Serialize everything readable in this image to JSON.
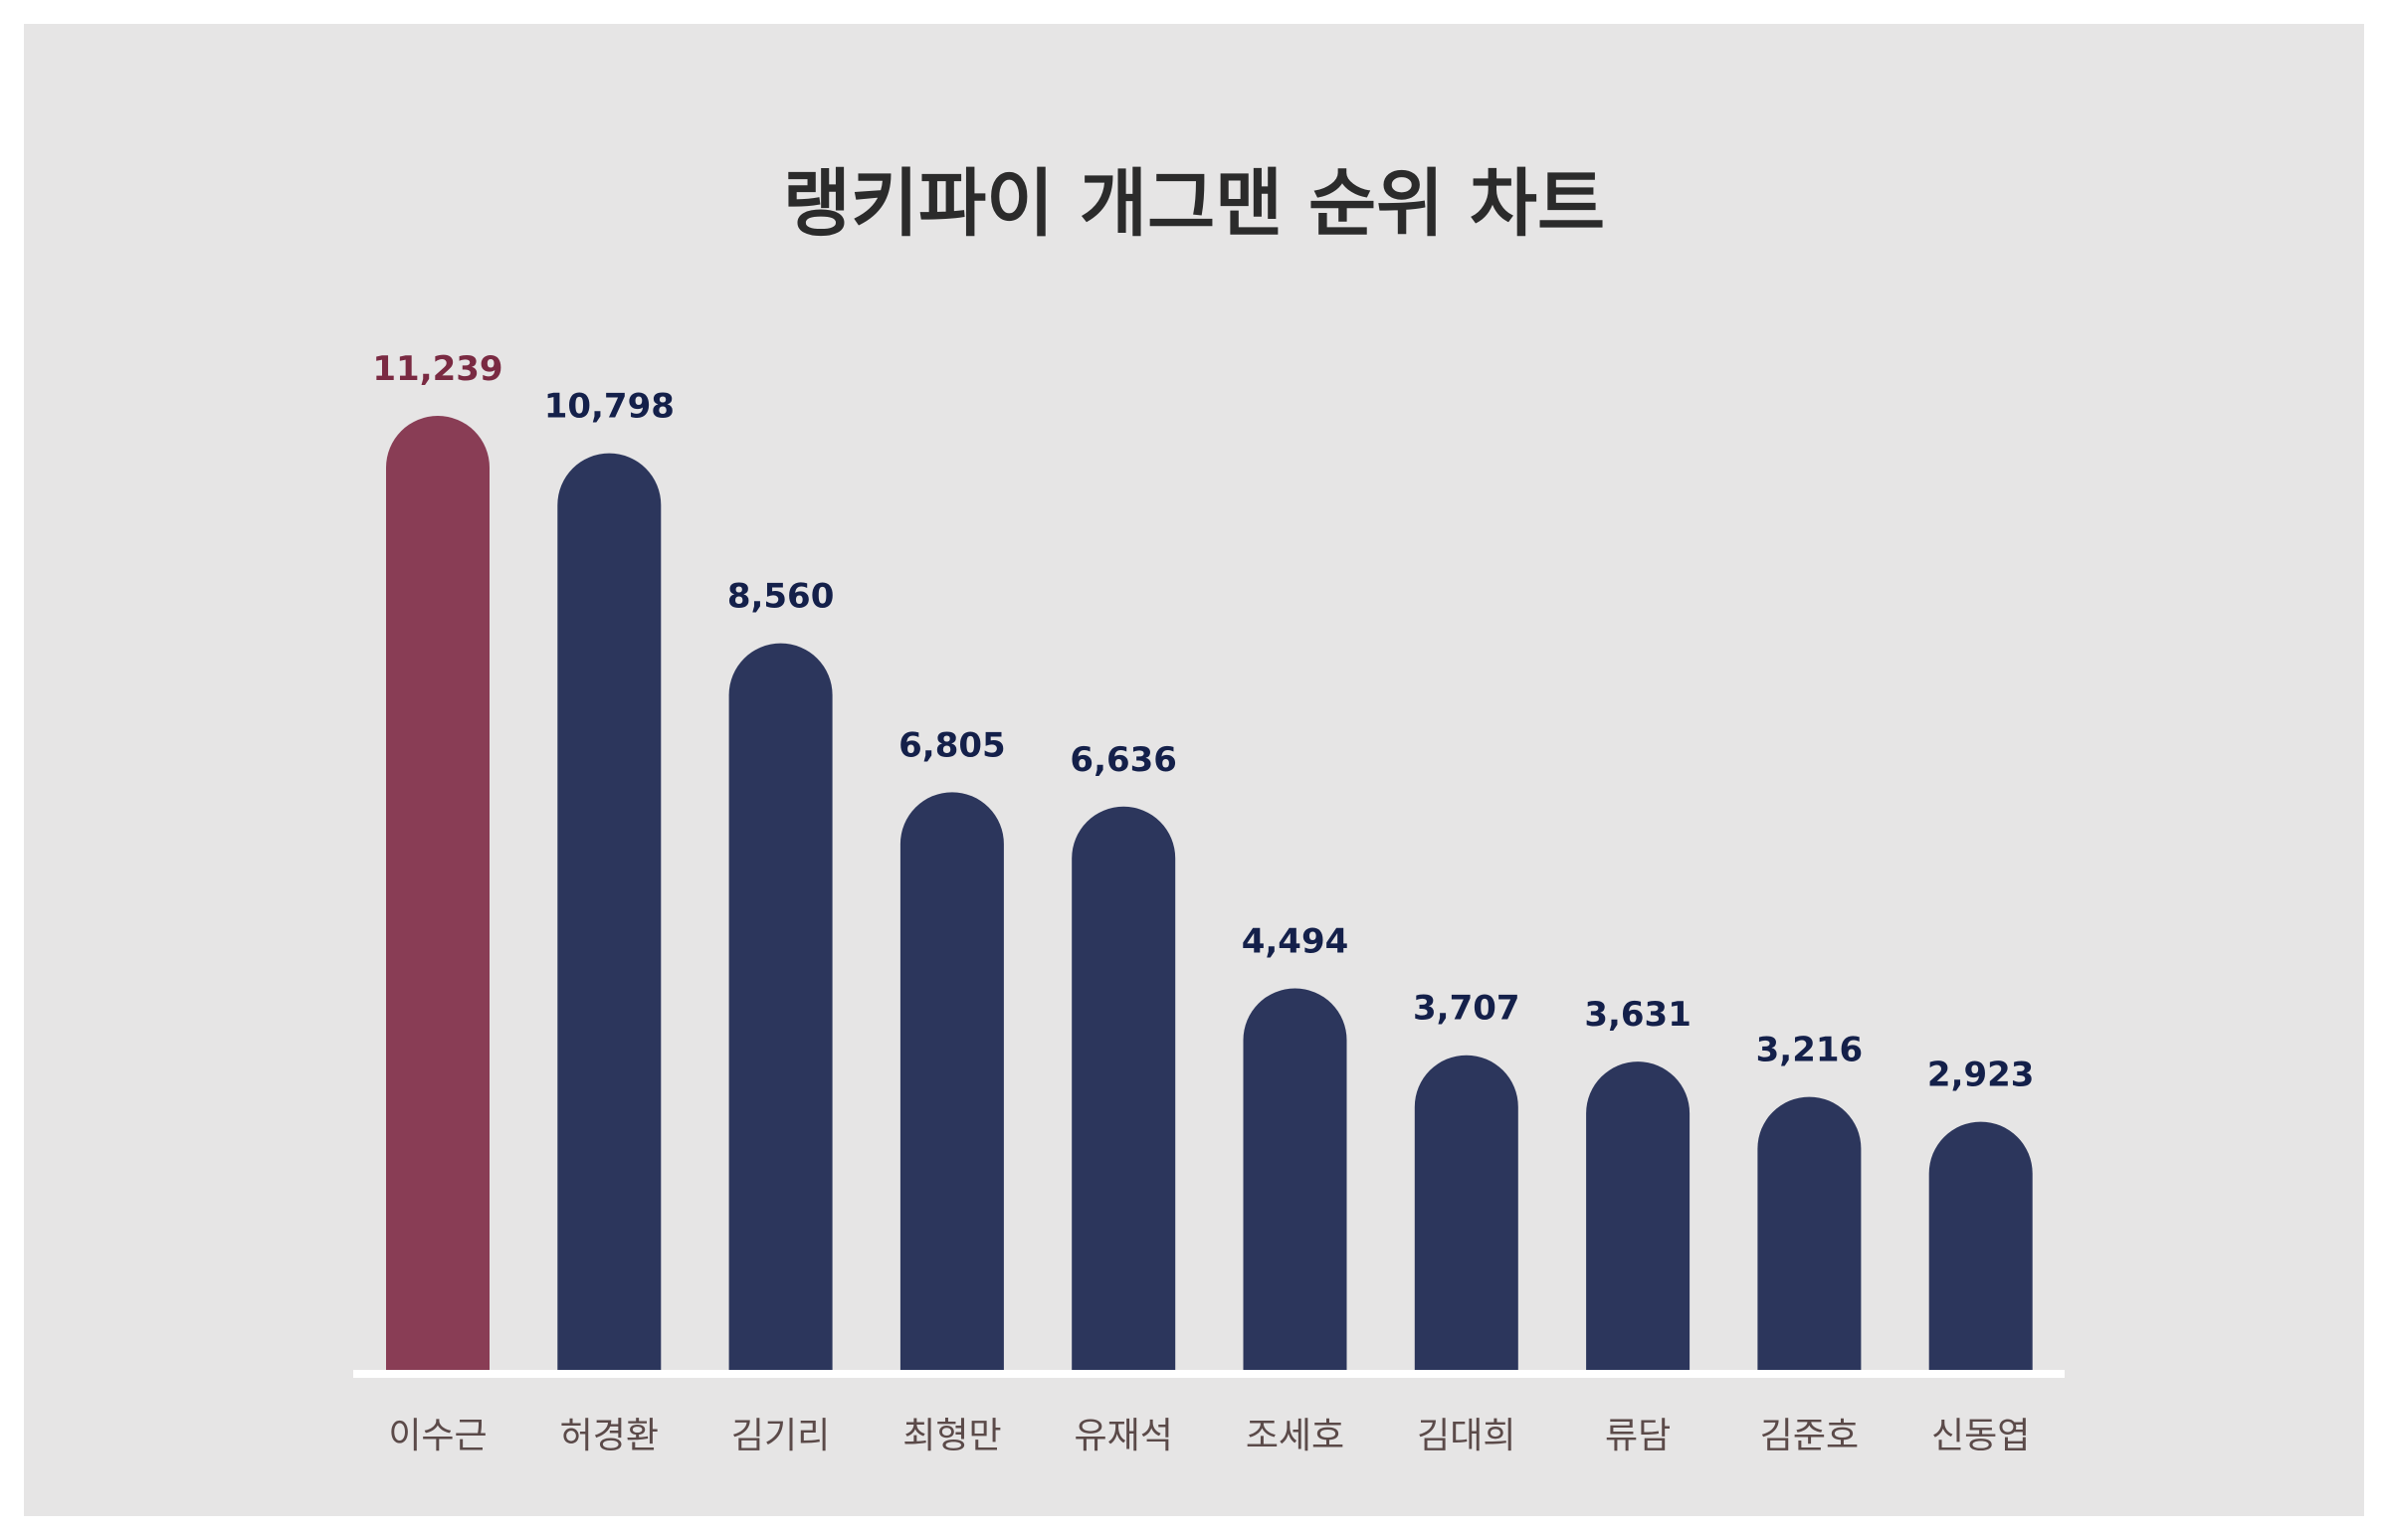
{
  "chart_data": {
    "type": "bar",
    "title": "랭키파이 개그맨 순위 차트",
    "categories": [
      "이수근",
      "허경환",
      "김기리",
      "최형만",
      "유재석",
      "조세호",
      "김대희",
      "류담",
      "김준호",
      "신동엽"
    ],
    "values": [
      11239,
      10798,
      8560,
      6805,
      6636,
      4494,
      3707,
      3631,
      3216,
      2923
    ],
    "value_labels": [
      "11,239",
      "10,798",
      "8,560",
      "6,805",
      "6,636",
      "4,494",
      "3,707",
      "3,631",
      "3,216",
      "2,923"
    ],
    "highlight_index": 0,
    "grid": false,
    "legend": "none",
    "colors": {
      "highlight": "#893d55",
      "bar": "#2c365c",
      "highlight_label": "#7a2a42",
      "value_label": "#14204a",
      "category_label": "#5b4a49",
      "background": "#e6e5e5",
      "baseline": "#ffffff"
    }
  }
}
